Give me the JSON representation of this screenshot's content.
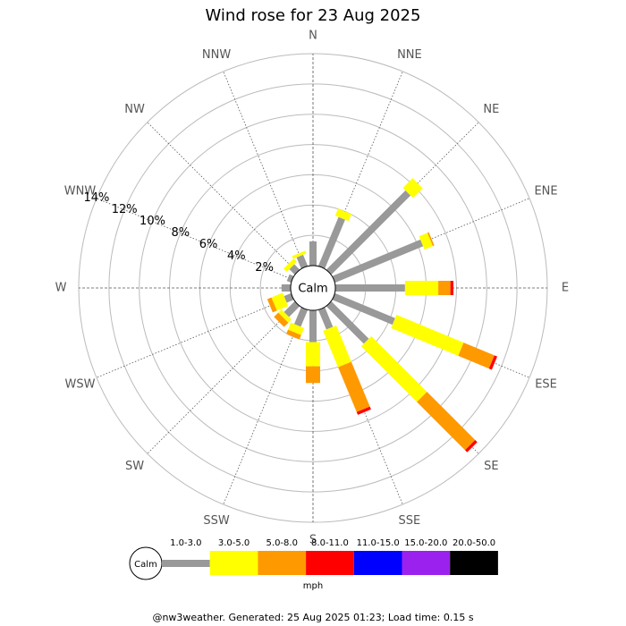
{
  "chart_data": {
    "type": "wind_rose",
    "title": "Wind rose for 23 Aug 2025",
    "directions": [
      "N",
      "NNE",
      "NE",
      "ENE",
      "E",
      "ESE",
      "SE",
      "SSE",
      "S",
      "SSW",
      "SW",
      "WSW",
      "W",
      "WNW",
      "NW",
      "NNW"
    ],
    "rlim": [
      0,
      14
    ],
    "rticks": [
      {
        "value": 2,
        "label": "2%"
      },
      {
        "value": 4,
        "label": "4%"
      },
      {
        "value": 6,
        "label": "6%"
      },
      {
        "value": 8,
        "label": "8%"
      },
      {
        "value": 10,
        "label": "10%"
      },
      {
        "value": 12,
        "label": "12%"
      },
      {
        "value": 14,
        "label": "14%"
      }
    ],
    "calm_label": "Calm",
    "legend_unit": "mph",
    "series": [
      {
        "name": "1.0-3.0",
        "color": "#999999",
        "values": [
          1.6,
          3.5,
          7.4,
          6.3,
          4.6,
          4.3,
          3.5,
          1.4,
          2.1,
          1.2,
          1.0,
          0.5,
          0.6,
          0.3,
          0.5,
          0.8
        ]
      },
      {
        "name": "3.0-5.0",
        "color": "#ffff00",
        "values": [
          0,
          0.5,
          0.9,
          0.6,
          2.2,
          4.8,
          5.2,
          2.6,
          1.6,
          0.5,
          0.3,
          0.8,
          0,
          0,
          0.3,
          0.2
        ]
      },
      {
        "name": "5.0-8.0",
        "color": "#ff9900",
        "values": [
          0,
          0,
          0,
          0.1,
          0.8,
          2.2,
          4.5,
          3.2,
          1.1,
          0.3,
          0.4,
          0.3,
          0,
          0,
          0,
          0
        ]
      },
      {
        "name": "8.0-11.0",
        "color": "#ff0000",
        "values": [
          0,
          0,
          0,
          0,
          0.2,
          0.2,
          0.2,
          0.2,
          0,
          0,
          0,
          0,
          0,
          0,
          0,
          0
        ]
      },
      {
        "name": "11.0-15.0",
        "color": "#0000ff",
        "values": [
          0,
          0,
          0,
          0,
          0,
          0,
          0,
          0,
          0,
          0,
          0,
          0,
          0,
          0,
          0,
          0
        ]
      },
      {
        "name": "15.0-20.0",
        "color": "#9b22ee",
        "values": [
          0,
          0,
          0,
          0,
          0,
          0,
          0,
          0,
          0,
          0,
          0,
          0,
          0,
          0,
          0,
          0
        ]
      },
      {
        "name": "20.0-50.0",
        "color": "#000000",
        "values": [
          0,
          0,
          0,
          0,
          0,
          0,
          0,
          0,
          0,
          0,
          0,
          0,
          0,
          0,
          0,
          0
        ]
      }
    ]
  },
  "footer": "@nw3weather. Generated: 25 Aug 2025 01:23; Load time: 0.15 s"
}
